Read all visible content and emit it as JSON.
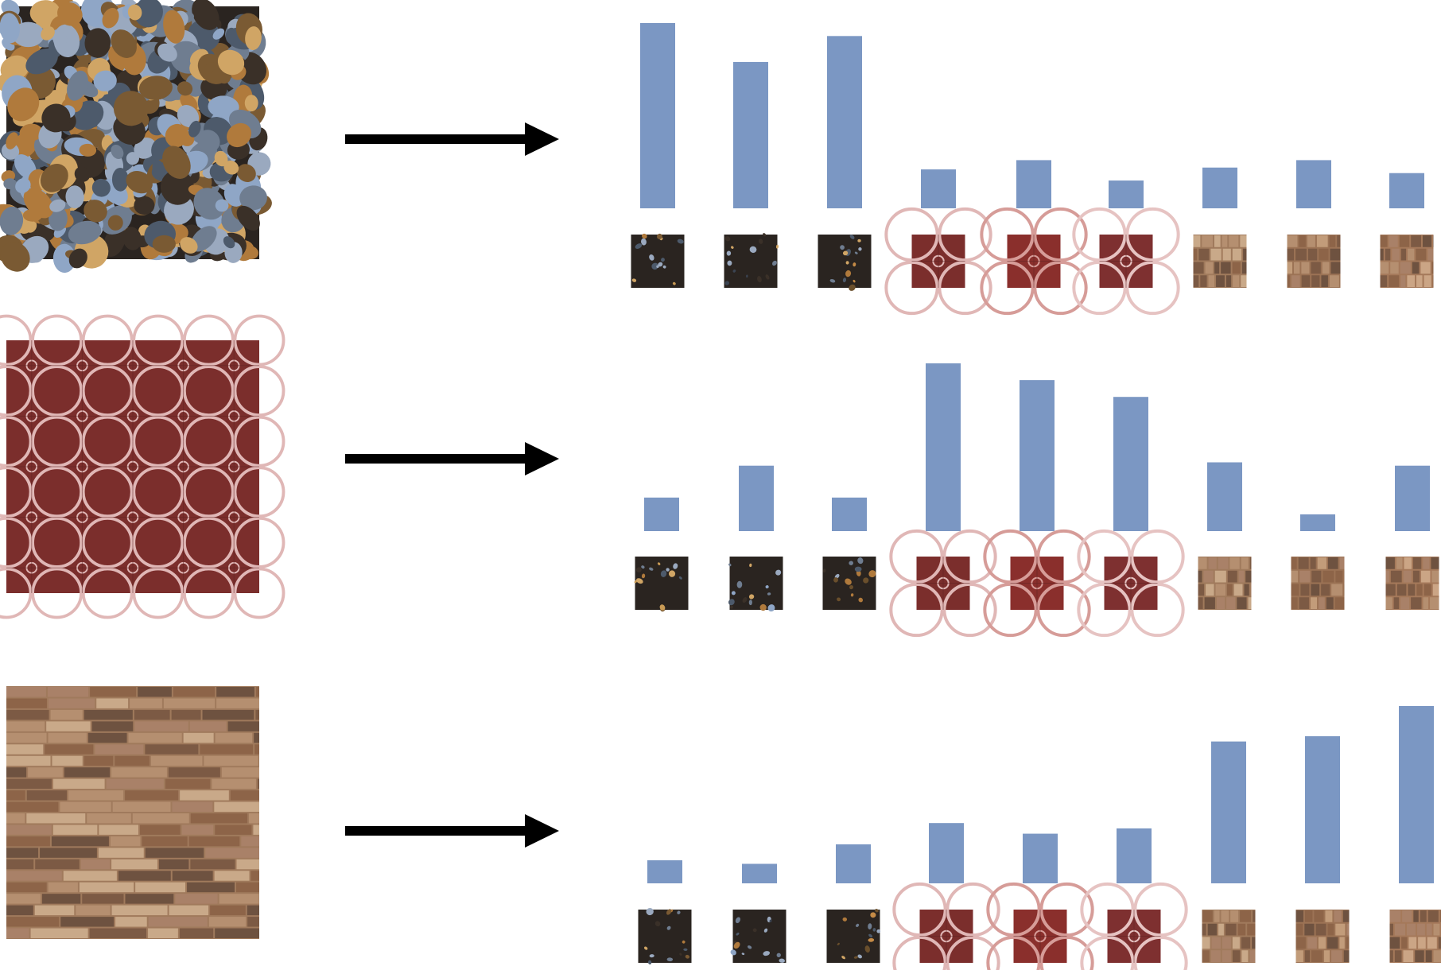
{
  "colors": {
    "bar": "#7b97c3",
    "arrow": "#000000",
    "background": "#ffffff"
  },
  "textures": [
    {
      "name": "pebbles-a",
      "base": "#7a5a33",
      "accent": "#c89a55",
      "style": "pebbles"
    },
    {
      "name": "pebbles-b",
      "base": "#3b4452",
      "accent": "#8fa6c6",
      "style": "pebbles"
    },
    {
      "name": "pebbles-c",
      "base": "#6a4f2c",
      "accent": "#c58b46",
      "style": "pebbles"
    },
    {
      "name": "tile-a",
      "base": "#7b2e2c",
      "accent": "#e0b7b6",
      "style": "tile"
    },
    {
      "name": "tile-b",
      "base": "#8a2f2c",
      "accent": "#d69c98",
      "style": "tile"
    },
    {
      "name": "tile-c",
      "base": "#7e3030",
      "accent": "#e6c3c2",
      "style": "tile"
    },
    {
      "name": "brick-a",
      "base": "#a07a5c",
      "accent": "#c9a989",
      "style": "brick"
    },
    {
      "name": "brick-b",
      "base": "#9c7355",
      "accent": "#c29c7a",
      "style": "brick"
    },
    {
      "name": "brick-c",
      "base": "#a5795a",
      "accent": "#cba585",
      "style": "brick"
    }
  ],
  "chart_data": [
    {
      "type": "bar",
      "source_texture": "pebbles",
      "categories": [
        "pebbles-a",
        "pebbles-b",
        "pebbles-c",
        "tile-a",
        "tile-b",
        "tile-c",
        "brick-a",
        "brick-b",
        "brick-c"
      ],
      "values": [
        100,
        79,
        93,
        21,
        26,
        15,
        22,
        26,
        19
      ],
      "ylim": [
        0,
        100
      ]
    },
    {
      "type": "bar",
      "source_texture": "tile",
      "categories": [
        "pebbles-a",
        "pebbles-b",
        "pebbles-c",
        "tile-a",
        "tile-b",
        "tile-c",
        "brick-a",
        "brick-b",
        "brick-c"
      ],
      "values": [
        20,
        39,
        20,
        100,
        90,
        80,
        41,
        10,
        39
      ],
      "ylim": [
        0,
        100
      ]
    },
    {
      "type": "bar",
      "source_texture": "brick",
      "categories": [
        "pebbles-a",
        "pebbles-b",
        "pebbles-c",
        "tile-a",
        "tile-b",
        "tile-c",
        "brick-a",
        "brick-b",
        "brick-c"
      ],
      "values": [
        13,
        11,
        22,
        34,
        28,
        31,
        80,
        83,
        100
      ],
      "ylim": [
        0,
        100
      ]
    }
  ]
}
